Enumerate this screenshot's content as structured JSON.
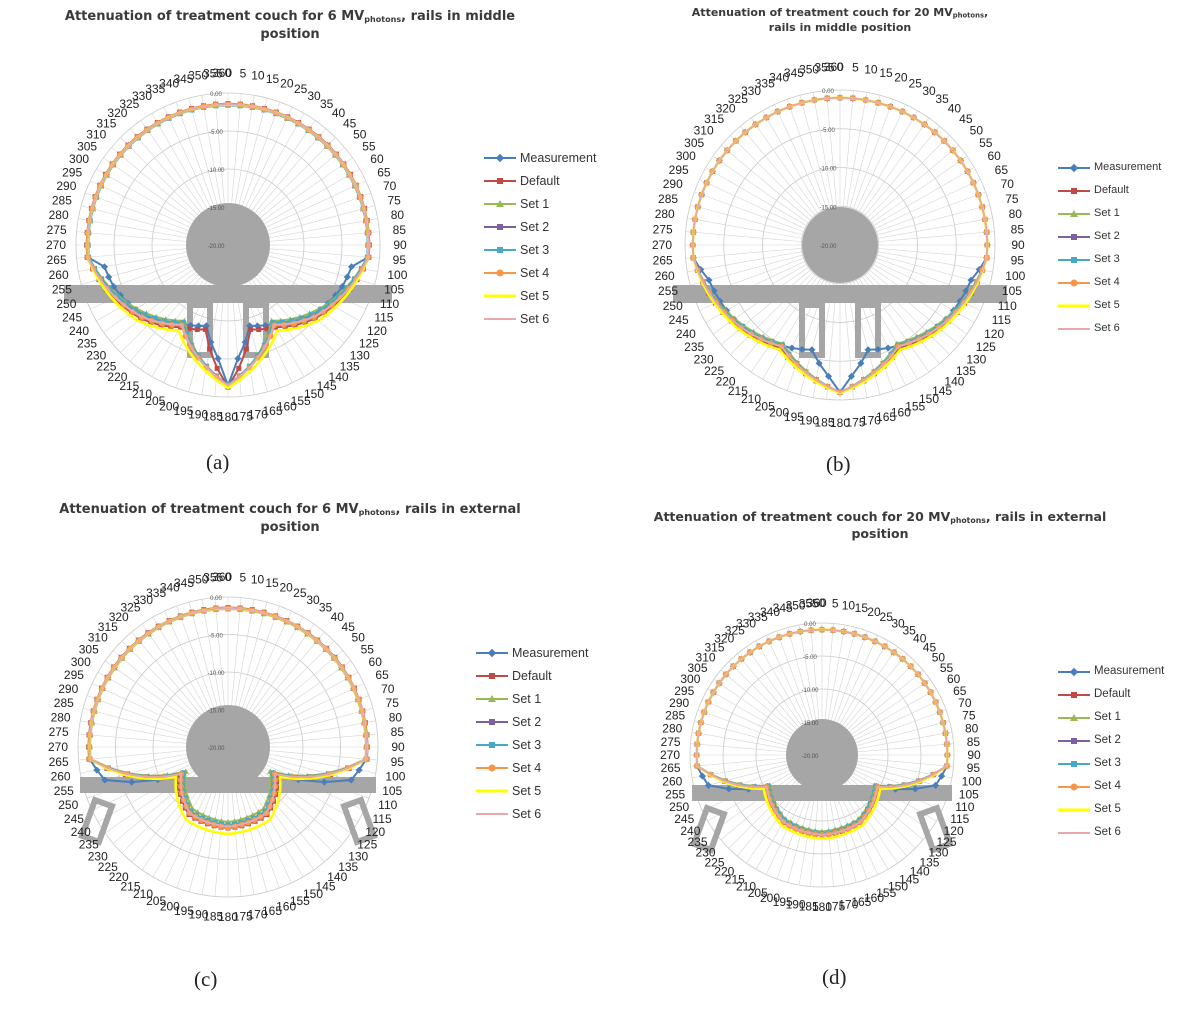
{
  "figure": {
    "panel_tags": [
      "(a)",
      "(b)",
      "(c)",
      "(d)"
    ],
    "radial_tick_labels": [
      "0.00",
      "-5.00",
      "-10.00",
      "-15.00",
      "-20.00"
    ],
    "radial_range": [
      -20,
      0
    ],
    "angle_tick_labels": [
      "0",
      "5",
      "10",
      "15",
      "20",
      "25",
      "30",
      "35",
      "40",
      "45",
      "50",
      "55",
      "60",
      "65",
      "70",
      "75",
      "80",
      "85",
      "90",
      "95",
      "100",
      "105",
      "110",
      "115",
      "120",
      "125",
      "130",
      "135",
      "140",
      "145",
      "150",
      "155",
      "160",
      "165",
      "170",
      "175",
      "180",
      "185",
      "190",
      "195",
      "200",
      "205",
      "210",
      "215",
      "220",
      "225",
      "230",
      "235",
      "240",
      "245",
      "250",
      "255",
      "260",
      "265",
      "270",
      "275",
      "280",
      "285",
      "290",
      "295",
      "300",
      "305",
      "310",
      "315",
      "320",
      "325",
      "330",
      "335",
      "340",
      "345",
      "350",
      "355",
      "360"
    ],
    "legend_entries": [
      "Measurement",
      "Default",
      "Set 1",
      "Set 2",
      "Set 3",
      "Set 4",
      "Set 5",
      "Set 6"
    ],
    "series_colors": [
      "#4a7ebb",
      "#be4b48",
      "#98b954",
      "#7d60a0",
      "#46aac5",
      "#f79646",
      "#ffff00",
      "#e6a9a8"
    ],
    "overlay_color": "#a6a6a6"
  },
  "chart_data": [
    {
      "type": "radar",
      "title_main": "Attenuation of treatment couch for 6 MV",
      "title_sub": "photons",
      "title_end": ", rails in middle position",
      "panel": "(a)",
      "angles_deg": "0-360 step 5",
      "series": [
        {
          "name": "Measurement",
          "values_by_angle": {
            "0-95": -1.5,
            "100": -3.5,
            "110": -4,
            "130": -5.5,
            "150": -8,
            "165": -9,
            "175": -5,
            "180": -1.5,
            "185": -5,
            "195": -9,
            "210": -8,
            "230": -5.5,
            "250": -4,
            "260": -3.5,
            "265-355": -1.5
          }
        },
        {
          "name": "Default",
          "values_by_angle": {
            "0-95": -1.4,
            "130": -5,
            "150": -7.5,
            "165": -8.5,
            "180": -1.3,
            "195": -8.5,
            "210": -7.5,
            "230": -5,
            "265-355": -1.4
          }
        },
        {
          "name": "Set 1",
          "values_by_angle": {
            "0-95": -1.6,
            "130": -6,
            "150": -8.5,
            "180": -1.4,
            "210": -8.5,
            "230": -6,
            "265-355": -1.6
          }
        },
        {
          "name": "Set 2",
          "values_by_angle": {
            "0-95": -1.5,
            "130": -5.5,
            "150": -8,
            "180": -1.5,
            "210": -8,
            "230": -5.5,
            "265-355": -1.5
          }
        },
        {
          "name": "Set 3",
          "values_by_angle": {
            "0-95": -1.6,
            "130": -5.7,
            "150": -8.2,
            "180": -1.6,
            "210": -8.2,
            "230": -5.7,
            "265-355": -1.6
          }
        },
        {
          "name": "Set 4",
          "values_by_angle": {
            "0-95": -1.5,
            "130": -5.2,
            "150": -7.8,
            "180": -1.5,
            "210": -7.8,
            "230": -5.2,
            "265-355": -1.5
          }
        },
        {
          "name": "Set 5",
          "values_by_angle": {
            "0-95": -1.5,
            "130": -4.5,
            "150": -7,
            "180": -1.2,
            "210": -7,
            "230": -4.5,
            "265-355": -1.5
          }
        },
        {
          "name": "Set 6",
          "values_by_angle": {
            "0-95": -1.5,
            "130": -5.3,
            "150": -7.9,
            "180": -1.5,
            "210": -7.9,
            "230": -5.3,
            "265-355": -1.5
          }
        }
      ]
    },
    {
      "type": "radar",
      "title_main": "Attenuation of treatment couch for 20 MV",
      "title_sub": "photons",
      "title_end": ", rails in middle position",
      "panel": "(b)",
      "angles_deg": "0-360 step 5",
      "series": [
        {
          "name": "Measurement",
          "values_by_angle": {
            "0-95": -1,
            "105": -2.5,
            "130": -3.5,
            "150": -5,
            "165": -6,
            "175": -3,
            "180": -1,
            "185": -3,
            "195": -6,
            "210": -5,
            "230": -3.5,
            "255": -2.5,
            "265-355": -1
          }
        },
        {
          "name": "Default",
          "values_by_angle": {
            "0-95": -1,
            "130": -3.2,
            "150": -4.6,
            "180": -1,
            "210": -4.6,
            "230": -3.2,
            "265-355": -1
          }
        },
        {
          "name": "Set 1",
          "values_by_angle": {
            "0-95": -1,
            "130": -3.8,
            "150": -5.3,
            "180": -1,
            "210": -5.3,
            "230": -3.8,
            "265-355": -1
          }
        },
        {
          "name": "Set 2",
          "values_by_angle": {
            "0-95": -1,
            "130": -3.5,
            "150": -5,
            "180": -1,
            "210": -5,
            "230": -3.5,
            "265-355": -1
          }
        },
        {
          "name": "Set 3",
          "values_by_angle": {
            "0-95": -1,
            "130": -3.6,
            "150": -5.1,
            "180": -1,
            "210": -5.1,
            "230": -3.6,
            "265-355": -1
          }
        },
        {
          "name": "Set 4",
          "values_by_angle": {
            "0-95": -1,
            "130": -3.4,
            "150": -4.9,
            "180": -1,
            "210": -4.9,
            "230": -3.4,
            "265-355": -1
          }
        },
        {
          "name": "Set 5",
          "values_by_angle": {
            "0-95": -1,
            "130": -3,
            "150": -4.4,
            "180": -0.9,
            "210": -4.4,
            "230": -3,
            "265-355": -1
          }
        },
        {
          "name": "Set 6",
          "values_by_angle": {
            "0-95": -1,
            "130": -3.4,
            "150": -4.9,
            "180": -1,
            "210": -4.9,
            "230": -3.4,
            "265-355": -1
          }
        }
      ]
    },
    {
      "type": "radar",
      "title_main": "Attenuation of treatment couch for 6 MV",
      "title_sub": "photons",
      "title_end": ", rails in external position",
      "panel": "(c)",
      "angles_deg": "0-360 step 5",
      "series": [
        {
          "name": "Measurement",
          "values_by_angle": {
            "0-95": -1.5,
            "105": -3,
            "120": -13,
            "150": -10,
            "180": -9.5,
            "210": -10,
            "240": -13,
            "255": -3,
            "265-355": -1.5
          }
        },
        {
          "name": "Default",
          "values_by_angle": {
            "0-95": -1.4,
            "120": -12.5,
            "150": -9.6,
            "180": -9.2,
            "210": -9.6,
            "240": -12.5,
            "265-355": -1.4
          }
        },
        {
          "name": "Set 1",
          "values_by_angle": {
            "0-95": -1.6,
            "120": -13.5,
            "150": -10.5,
            "180": -10,
            "210": -10.5,
            "240": -13.5,
            "265-355": -1.6
          }
        },
        {
          "name": "Set 2",
          "values_by_angle": {
            "0-95": -1.5,
            "120": -13,
            "150": -10,
            "180": -9.5,
            "210": -10,
            "240": -13,
            "265-355": -1.5
          }
        },
        {
          "name": "Set 3",
          "values_by_angle": {
            "0-95": -1.5,
            "120": -13.1,
            "150": -10.1,
            "180": -9.6,
            "210": -10.1,
            "240": -13.1,
            "265-355": -1.5
          }
        },
        {
          "name": "Set 4",
          "values_by_angle": {
            "0-95": -1.5,
            "120": -12.8,
            "150": -9.8,
            "180": -9.3,
            "210": -9.8,
            "240": -12.8,
            "265-355": -1.5
          }
        },
        {
          "name": "Set 5",
          "values_by_angle": {
            "0-95": -1.5,
            "120": -12,
            "150": -8.8,
            "180": -8.4,
            "210": -8.8,
            "240": -12,
            "265-355": -1.5
          }
        },
        {
          "name": "Set 6",
          "values_by_angle": {
            "0-95": -1.5,
            "120": -12.8,
            "150": -9.8,
            "180": -9.4,
            "210": -9.8,
            "240": -12.8,
            "265-355": -1.5
          }
        }
      ]
    },
    {
      "type": "radar",
      "title_main": "Attenuation of treatment couch for 20 MV",
      "title_sub": "photons",
      "title_end": ", rails in external position",
      "panel": "(d)",
      "angles_deg": "0-360 step 5",
      "series": [
        {
          "name": "Measurement",
          "values_by_angle": {
            "0-95": -1,
            "105": -2.2,
            "120": -10.5,
            "150": -8.5,
            "180": -8,
            "210": -8.5,
            "240": -10.5,
            "255": -2.2,
            "265-355": -1
          }
        },
        {
          "name": "Default",
          "values_by_angle": {
            "0-95": -1,
            "120": -10.2,
            "150": -8.2,
            "180": -7.8,
            "210": -8.2,
            "240": -10.2,
            "265-355": -1
          }
        },
        {
          "name": "Set 1",
          "values_by_angle": {
            "0-95": -1,
            "120": -10.8,
            "150": -8.8,
            "180": -8.4,
            "210": -8.8,
            "240": -10.8,
            "265-355": -1
          }
        },
        {
          "name": "Set 2",
          "values_by_angle": {
            "0-95": -1,
            "120": -10.5,
            "150": -8.5,
            "180": -8,
            "210": -8.5,
            "240": -10.5,
            "265-355": -1
          }
        },
        {
          "name": "Set 3",
          "values_by_angle": {
            "0-95": -1,
            "120": -10.6,
            "150": -8.6,
            "180": -8.1,
            "210": -8.6,
            "240": -10.6,
            "265-355": -1
          }
        },
        {
          "name": "Set 4",
          "values_by_angle": {
            "0-95": -1,
            "120": -10.3,
            "150": -8.3,
            "180": -7.9,
            "210": -8.3,
            "240": -10.3,
            "265-355": -1
          }
        },
        {
          "name": "Set 5",
          "values_by_angle": {
            "0-95": -1,
            "120": -9.8,
            "150": -7.7,
            "180": -7.3,
            "210": -7.7,
            "240": -9.8,
            "265-355": -1
          }
        },
        {
          "name": "Set 6",
          "values_by_angle": {
            "0-95": -1,
            "120": -10.3,
            "150": -8.3,
            "180": -7.9,
            "210": -8.3,
            "240": -10.3,
            "265-355": -1
          }
        }
      ]
    }
  ]
}
